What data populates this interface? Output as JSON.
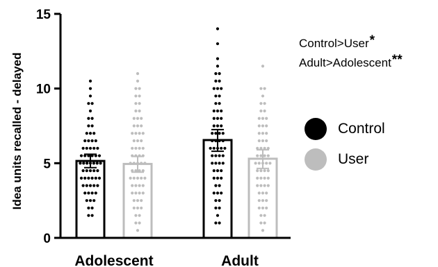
{
  "chart_data": {
    "type": "bar",
    "ylabel": "Idea units recalled - delayed",
    "ylim": [
      0,
      15
    ],
    "yticks": [
      0,
      5,
      10,
      15
    ],
    "ytick_labels": [
      "0",
      "5",
      "10",
      "15"
    ],
    "categories": [
      "Adolescent",
      "Adult"
    ],
    "grid": false,
    "legend_position": "right",
    "series": [
      {
        "name": "Control",
        "color": "#000000",
        "values": [
          5.15,
          6.55
        ],
        "error_low": [
          4.7,
          5.8
        ],
        "error_high": [
          5.6,
          7.25
        ],
        "points": [
          [
            1.5,
            1.5,
            2,
            2,
            2.5,
            2.5,
            2.5,
            3,
            3,
            3,
            3,
            3.5,
            3.5,
            3.5,
            3.5,
            3.5,
            4,
            4,
            4,
            4,
            4,
            4,
            4.5,
            4.5,
            4.5,
            4.5,
            4.5,
            5,
            5,
            5,
            5,
            5,
            5,
            5,
            5.5,
            5.5,
            5.5,
            5.5,
            5.5,
            5.5,
            6,
            6,
            6,
            6,
            6,
            6.5,
            6.5,
            6.5,
            6.5,
            7,
            7,
            7,
            7.5,
            7.5,
            8,
            8,
            8.5,
            9,
            9,
            9.5,
            10,
            10.5
          ],
          [
            1,
            1,
            1.5,
            2,
            2,
            2.5,
            2.5,
            3,
            3,
            3,
            3.5,
            3.5,
            4,
            4,
            4,
            4.5,
            4.5,
            4.5,
            5,
            5,
            5,
            5,
            5.5,
            5.5,
            5.5,
            5.5,
            6,
            6,
            6,
            6,
            6,
            6.5,
            6.5,
            6.5,
            6.5,
            7,
            7,
            7,
            7,
            7.5,
            7.5,
            7.5,
            8,
            8,
            8,
            8.5,
            8.5,
            8.5,
            9,
            9,
            9.5,
            9.5,
            10,
            10,
            10,
            10.5,
            10.5,
            11,
            11,
            11.5,
            12,
            13,
            14
          ]
        ]
      },
      {
        "name": "User",
        "color": "#bdbdbd",
        "values": [
          4.95,
          5.3
        ],
        "error_low": [
          4.4,
          4.65
        ],
        "error_high": [
          5.45,
          5.9
        ],
        "points": [
          [
            0.5,
            1,
            1,
            1.5,
            1.5,
            2,
            2,
            2,
            2.5,
            2.5,
            2.5,
            3,
            3,
            3,
            3,
            3.5,
            3.5,
            3.5,
            3.5,
            4,
            4,
            4,
            4,
            4,
            4.5,
            4.5,
            4.5,
            4.5,
            5,
            5,
            5,
            5,
            5,
            5.5,
            5.5,
            5.5,
            5.5,
            6,
            6,
            6,
            6,
            6.5,
            6.5,
            6.5,
            7,
            7,
            7,
            7,
            7.5,
            7.5,
            7.5,
            8,
            8,
            8,
            8.5,
            8.5,
            9,
            9,
            9.5,
            9.5,
            10,
            10,
            10.5,
            11
          ],
          [
            0.5,
            1,
            1,
            1.5,
            1.5,
            2,
            2,
            2,
            2.5,
            2.5,
            2.5,
            3,
            3,
            3,
            3.5,
            3.5,
            3.5,
            3.5,
            4,
            4,
            4,
            4,
            4.5,
            4.5,
            4.5,
            4.5,
            5,
            5,
            5,
            5,
            5,
            5.5,
            5.5,
            5.5,
            5.5,
            6,
            6,
            6,
            6,
            6.5,
            6.5,
            6.5,
            7,
            7,
            7,
            7.5,
            7.5,
            7.5,
            8,
            8,
            8,
            8.5,
            8.5,
            9,
            9,
            9.5,
            10,
            10,
            11.5
          ]
        ]
      }
    ],
    "annotations": [
      {
        "text": "Control>User",
        "stars": "*"
      },
      {
        "text": "Adult>Adolescent",
        "stars": "**"
      }
    ]
  }
}
